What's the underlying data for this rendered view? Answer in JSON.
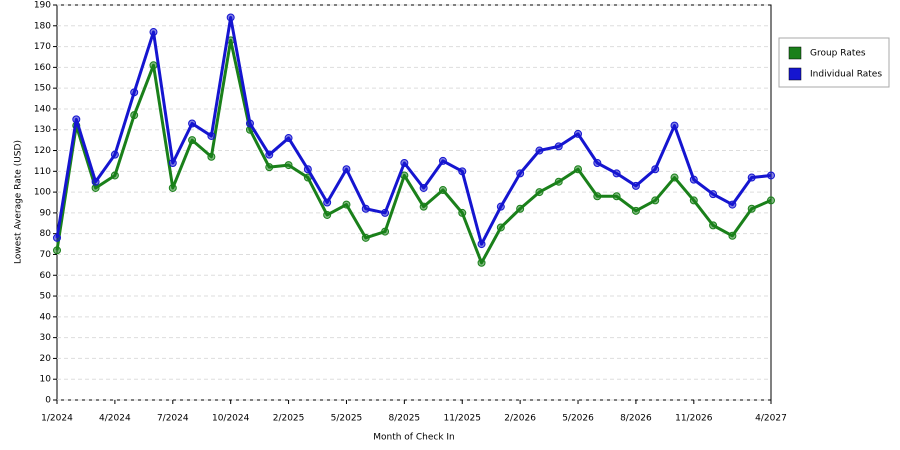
{
  "chart_data": {
    "type": "line",
    "x_label": "Month of Check In",
    "y_label": "Lowest Average Rate (USD)",
    "categories": [
      "1/2024",
      null,
      null,
      "4/2024",
      null,
      null,
      "7/2024",
      null,
      null,
      "10/2024",
      null,
      null,
      "2/2025",
      null,
      null,
      "5/2025",
      null,
      null,
      "8/2025",
      null,
      null,
      "11/2025",
      null,
      null,
      "2/2026",
      null,
      null,
      "5/2026",
      null,
      null,
      "8/2026",
      null,
      null,
      "11/2026",
      null,
      null,
      null,
      "4/2027"
    ],
    "series": [
      {
        "name": "Group Rates",
        "color": "#1a801a",
        "values": [
          72,
          132,
          102,
          108,
          137,
          161,
          102,
          125,
          117,
          173,
          130,
          112,
          113,
          107,
          89,
          94,
          78,
          81,
          108,
          93,
          101,
          90,
          66,
          83,
          92,
          100,
          105,
          111,
          98,
          98,
          91,
          96,
          107,
          96,
          84,
          79,
          92,
          96
        ]
      },
      {
        "name": "Individual Rates",
        "color": "#1515d0",
        "values": [
          78,
          135,
          105,
          118,
          148,
          177,
          114,
          133,
          127,
          184,
          133,
          118,
          126,
          111,
          95,
          111,
          92,
          90,
          114,
          102,
          115,
          110,
          75,
          93,
          109,
          120,
          122,
          128,
          114,
          109,
          103,
          111,
          132,
          106,
          99,
          94,
          107,
          108
        ]
      }
    ],
    "ylim": [
      0,
      190
    ],
    "yticks": [
      0,
      10,
      20,
      30,
      40,
      50,
      60,
      70,
      80,
      90,
      100,
      110,
      120,
      130,
      140,
      150,
      160,
      170,
      180,
      190
    ],
    "grid": true,
    "legend": "right"
  }
}
